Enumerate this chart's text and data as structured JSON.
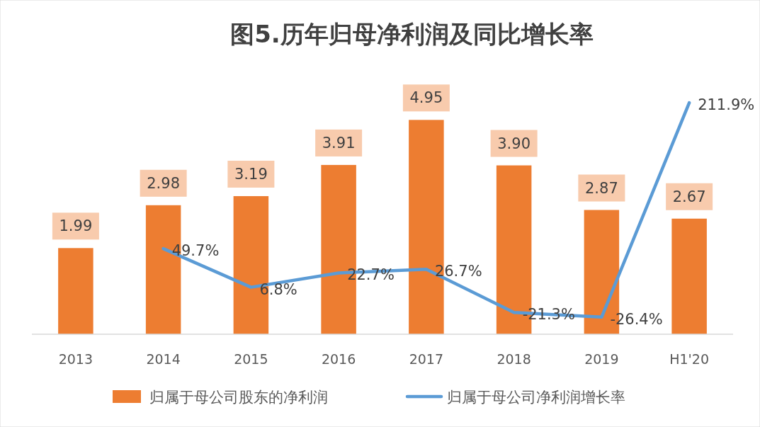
{
  "chart_data": {
    "type": "bar",
    "title": "图5.历年归母净利润及同比增长率",
    "categories": [
      "2013",
      "2014",
      "2015",
      "2016",
      "2017",
      "2018",
      "2019",
      "H1'20"
    ],
    "series": [
      {
        "name": "归属于母公司股东的净利润",
        "type": "bar",
        "color": "#ed7d31",
        "values": [
          1.99,
          2.98,
          3.19,
          3.91,
          4.95,
          3.9,
          2.87,
          2.67
        ],
        "value_labels": [
          "1.99",
          "2.98",
          "3.19",
          "3.91",
          "4.95",
          "3.90",
          "2.87",
          "2.67"
        ]
      },
      {
        "name": "归属于母公司净利润增长率",
        "type": "line",
        "axis": "y2",
        "color": "#5b9bd5",
        "values": [
          null,
          49.7,
          6.8,
          22.7,
          26.7,
          -21.3,
          -26.4,
          211.9
        ],
        "value_labels": [
          null,
          "49.7%",
          "6.8%",
          "22.7%",
          "26.7%",
          "-21.3%",
          "-26.4%",
          "211.9%"
        ]
      }
    ],
    "tick_labels": "x",
    "data_labels": true,
    "legend": "bottom",
    "grid": false,
    "marker": "none"
  }
}
